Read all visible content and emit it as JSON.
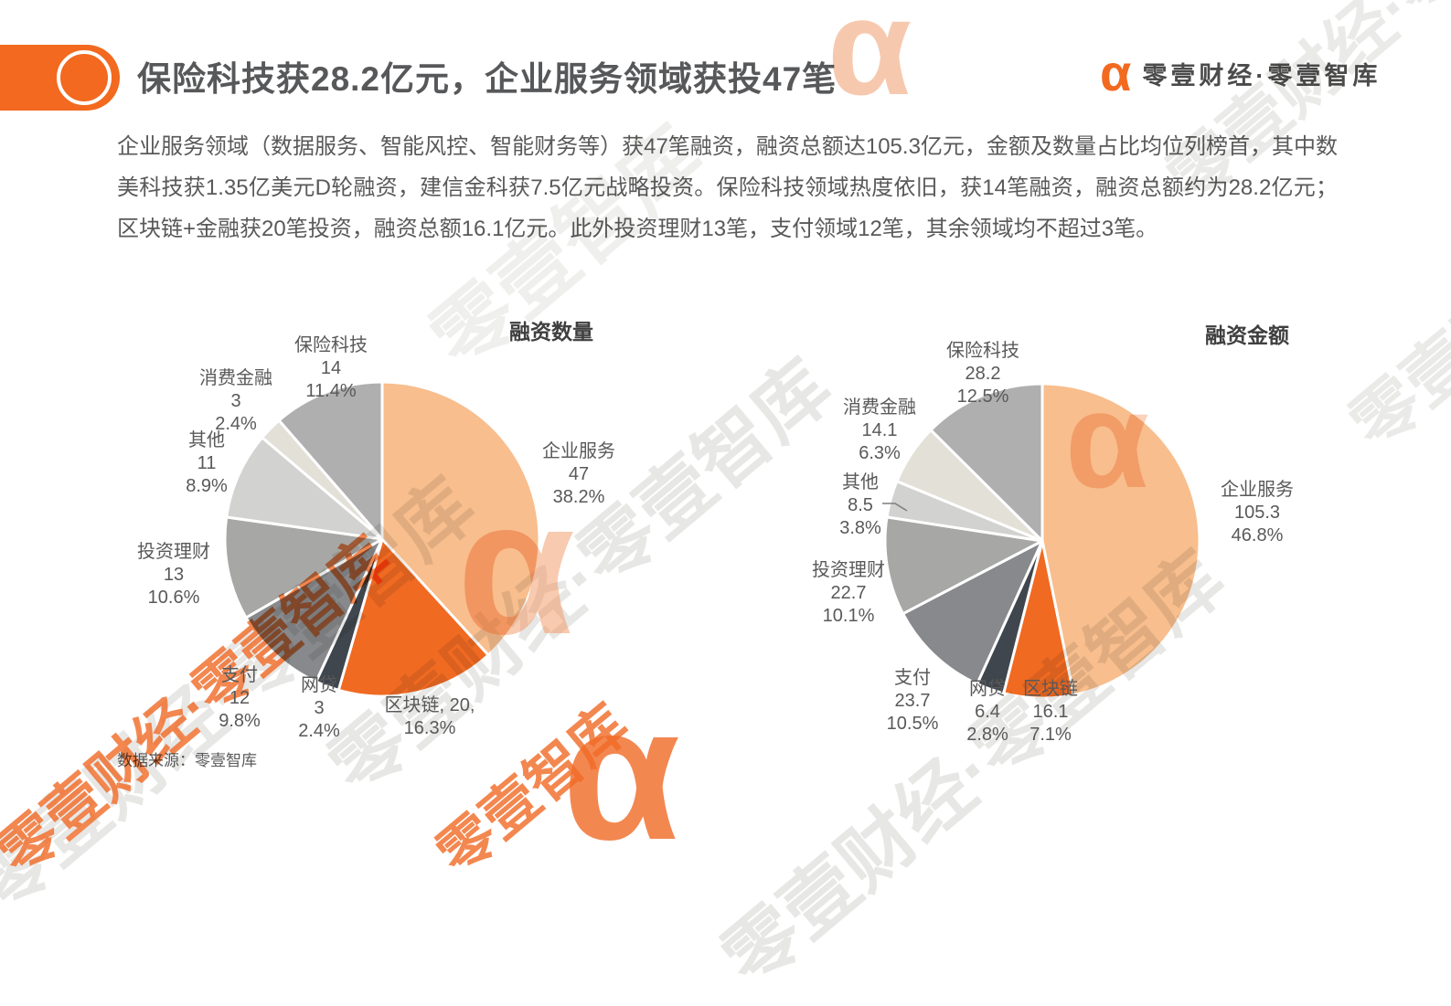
{
  "header": {
    "accent_color": "#F2691F",
    "title": "保险科技获28.2亿元，企业服务领域获投47笔",
    "logo": {
      "alpha": "α",
      "text": "零壹财经·零壹智库"
    }
  },
  "paragraph": "企业服务领域（数据服务、智能风控、智能财务等）获47笔融资，融资总额达105.3亿元，金额及数量占比均位列榜首，其中数美科技获1.35亿美元D轮融资，建信金科获7.5亿元战略投资。保险科技领域热度依旧，获14笔融资，融资总额约为28.2亿元；区块链+金融获20笔投资，融资总额16.1亿元。此外投资理财13笔，支付领域12笔，其余领域均不超过3笔。",
  "source_note": "数据来源：零壹智库",
  "watermark": {
    "brand_text": "零壹财经·零壹智库",
    "brand_text_short": "零壹智库",
    "alpha": "α"
  },
  "chart_data": [
    {
      "type": "pie",
      "title": "融资数量",
      "value_unit": "笔",
      "legend_position": "outside-labels",
      "slices": [
        {
          "id": "enterprise-services",
          "name": "企业服务",
          "value": 47,
          "pct": "38.2%",
          "color": "#F8BE8D",
          "label_lines": [
            "企业服务",
            "47",
            "38.2%"
          ]
        },
        {
          "id": "blockchain",
          "name": "区块链",
          "value": 20,
          "pct": "16.3%",
          "color": "#F06A22",
          "label_lines": [
            "区块链, 20,",
            "16.3%"
          ]
        },
        {
          "id": "online-lending",
          "name": "网贷",
          "value": 3,
          "pct": "2.4%",
          "color": "#3F464E",
          "label_lines": [
            "网贷",
            "3",
            "2.4%"
          ]
        },
        {
          "id": "payment",
          "name": "支付",
          "value": 12,
          "pct": "9.8%",
          "color": "#87898C",
          "label_lines": [
            "支付",
            "12",
            "9.8%"
          ]
        },
        {
          "id": "wealth-management",
          "name": "投资理财",
          "value": 13,
          "pct": "10.6%",
          "color": "#A7A7A5",
          "label_lines": [
            "投资理财",
            "13",
            "10.6%"
          ]
        },
        {
          "id": "others",
          "name": "其他",
          "value": 11,
          "pct": "8.9%",
          "color": "#D2D2D0",
          "label_lines": [
            "其他",
            "11",
            "8.9%"
          ]
        },
        {
          "id": "consumer-finance",
          "name": "消费金融",
          "value": 3,
          "pct": "2.4%",
          "color": "#E3E0D8",
          "label_lines": [
            "消费金融",
            "3",
            "2.4%"
          ]
        },
        {
          "id": "insurtech",
          "name": "保险科技",
          "value": 14,
          "pct": "11.4%",
          "color": "#AFAFAF",
          "label_lines": [
            "保险科技",
            "14",
            "11.4%"
          ]
        }
      ]
    },
    {
      "type": "pie",
      "title": "融资金额",
      "value_unit": "亿元",
      "legend_position": "outside-labels",
      "slices": [
        {
          "id": "enterprise-services",
          "name": "企业服务",
          "value": 105.3,
          "pct": "46.8%",
          "color": "#F8BE8D",
          "label_lines": [
            "企业服务",
            "105.3",
            "46.8%"
          ]
        },
        {
          "id": "blockchain",
          "name": "区块链",
          "value": 16.1,
          "pct": "7.1%",
          "color": "#F06A22",
          "label_lines": [
            "区块链",
            "16.1",
            "7.1%"
          ]
        },
        {
          "id": "online-lending",
          "name": "网贷",
          "value": 6.4,
          "pct": "2.8%",
          "color": "#3F464E",
          "label_lines": [
            "网贷",
            "6.4",
            "2.8%"
          ]
        },
        {
          "id": "payment",
          "name": "支付",
          "value": 23.7,
          "pct": "10.5%",
          "color": "#87898C",
          "label_lines": [
            "支付",
            "23.7",
            "10.5%"
          ]
        },
        {
          "id": "wealth-management",
          "name": "投资理财",
          "value": 22.7,
          "pct": "10.1%",
          "color": "#A7A7A5",
          "label_lines": [
            "投资理财",
            "22.7",
            "10.1%"
          ]
        },
        {
          "id": "others",
          "name": "其他",
          "value": 8.5,
          "pct": "3.8%",
          "color": "#D2D2D0",
          "label_lines": [
            "其他",
            "8.5",
            "3.8%"
          ]
        },
        {
          "id": "consumer-finance",
          "name": "消费金融",
          "value": 14.1,
          "pct": "6.3%",
          "color": "#E3E0D8",
          "label_lines": [
            "消费金融",
            "14.1",
            "6.3%"
          ]
        },
        {
          "id": "insurtech",
          "name": "保险科技",
          "value": 28.2,
          "pct": "12.5%",
          "color": "#AFAFAF",
          "label_lines": [
            "保险科技",
            "28.2",
            "12.5%"
          ]
        }
      ]
    }
  ]
}
